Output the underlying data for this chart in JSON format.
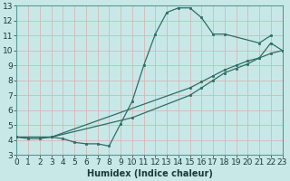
{
  "xlabel": "Humidex (Indice chaleur)",
  "xlim": [
    0,
    23
  ],
  "ylim": [
    3,
    13
  ],
  "xticks": [
    0,
    1,
    2,
    3,
    4,
    5,
    6,
    7,
    8,
    9,
    10,
    11,
    12,
    13,
    14,
    15,
    16,
    17,
    18,
    19,
    20,
    21,
    22,
    23
  ],
  "yticks": [
    3,
    4,
    5,
    6,
    7,
    8,
    9,
    10,
    11,
    12,
    13
  ],
  "bg_color": "#c8e8e8",
  "line_color": "#2e6e65",
  "grid_color": "#d4b8b8",
  "line1_x": [
    0,
    1,
    2,
    3,
    4,
    5,
    6,
    7,
    8,
    9,
    10,
    11,
    12,
    13,
    14,
    15,
    16,
    17,
    18,
    21,
    22
  ],
  "line1_y": [
    4.2,
    4.1,
    4.1,
    4.2,
    4.1,
    3.85,
    3.75,
    3.75,
    3.6,
    5.1,
    6.6,
    9.0,
    11.1,
    12.55,
    12.85,
    12.85,
    12.2,
    11.1,
    11.1,
    10.5,
    11.0
  ],
  "line2_x": [
    0,
    3,
    15,
    16,
    17,
    18,
    19,
    20,
    21,
    22,
    23
  ],
  "line2_y": [
    4.2,
    4.2,
    7.5,
    7.9,
    8.3,
    8.7,
    9.0,
    9.3,
    9.5,
    9.8,
    10.0
  ],
  "line3_x": [
    0,
    3,
    10,
    15,
    16,
    17,
    18,
    19,
    20,
    21,
    22,
    23
  ],
  "line3_y": [
    4.2,
    4.2,
    5.5,
    7.0,
    7.5,
    8.0,
    8.5,
    8.8,
    9.1,
    9.5,
    10.5,
    10.0
  ],
  "font_size_label": 7,
  "font_size_tick": 6.5
}
